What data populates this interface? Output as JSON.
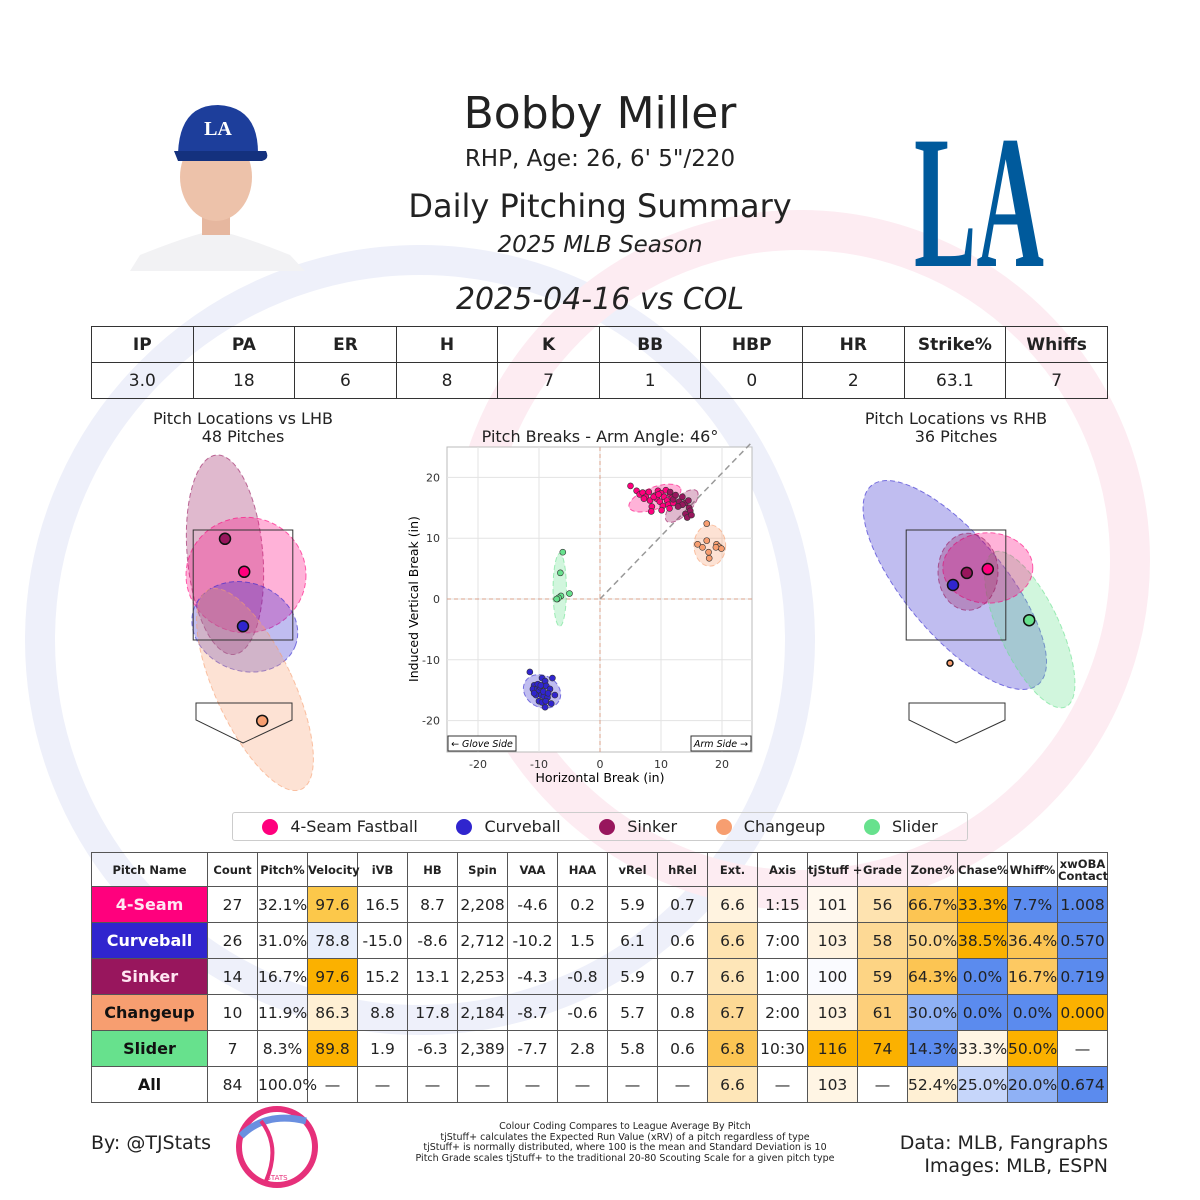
{
  "header": {
    "name": "Bobby Miller",
    "bio": "RHP, Age: 26, 6' 5\"/220",
    "title": "Daily Pitching Summary",
    "season": "2025 MLB Season",
    "game": "2025-04-16 vs COL",
    "team_logo": "LA",
    "team_color": "#005a9c"
  },
  "stats": {
    "headers": [
      "IP",
      "PA",
      "ER",
      "H",
      "K",
      "BB",
      "HBP",
      "HR",
      "Strike%",
      "Whiffs"
    ],
    "values": [
      "3.0",
      "18",
      "6",
      "8",
      "7",
      "1",
      "0",
      "2",
      "63.1",
      "7"
    ]
  },
  "pitch_colors": {
    "4-Seam Fastball": "#ff007d",
    "Curveball": "#3025ce",
    "Sinker": "#98165d",
    "Changeup": "#f79e70",
    "Slider": "#67e18d"
  },
  "legend": [
    "4-Seam Fastball",
    "Curveball",
    "Sinker",
    "Changeup",
    "Slider"
  ],
  "chart_data": [
    {
      "type": "scatter",
      "title": "Pitch Locations vs LHB",
      "subtitle": "48 Pitches",
      "zone": {
        "x": [
          -0.83,
          0.83
        ],
        "z": [
          1.5,
          3.5
        ]
      },
      "series": [
        {
          "name": "Sinker",
          "mean": [
            -0.3,
            3.34
          ],
          "ellipse": {
            "center": [
              -0.3,
              3.05
            ],
            "rx": 0.63,
            "rz": 1.82,
            "angle": -5
          }
        },
        {
          "name": "4-Seam Fastball",
          "mean": [
            0.02,
            2.74
          ],
          "ellipse": {
            "center": [
              0.05,
              2.68
            ],
            "rx": 1.0,
            "rz": 1.05,
            "angle": 0
          }
        },
        {
          "name": "Curveball",
          "mean": [
            0.0,
            1.75
          ],
          "ellipse": {
            "center": [
              0.03,
              1.74
            ],
            "rx": 0.9,
            "rz": 0.8,
            "angle": 20
          }
        },
        {
          "name": "Changeup",
          "mean": [
            0.32,
            0.03
          ],
          "ellipse": {
            "center": [
              0.2,
              0.6
            ],
            "rx": 0.65,
            "rz": 2.0,
            "angle": -25
          }
        }
      ]
    },
    {
      "type": "scatter",
      "title": "Pitch Breaks - Arm Angle: 46°",
      "xlabel": "Horizontal Break (in)",
      "ylabel": "Induced Vertical Break (in)",
      "xlim": [
        -25,
        25
      ],
      "ylim": [
        -25,
        25
      ],
      "xticks": [
        -20,
        -10,
        0,
        10,
        20
      ],
      "yticks": [
        -20,
        -10,
        0,
        10,
        20
      ],
      "grid": true,
      "arm_angle": 46,
      "annotations": [
        "← Glove Side",
        "Arm Side →"
      ],
      "series": [
        {
          "name": "4-Seam Fastball",
          "ellipse": {
            "center": [
              9,
              16.6
            ],
            "rx": 4.5,
            "ry": 1.8,
            "angle": -20
          },
          "points": [
            [
              5,
              18.6
            ],
            [
              6,
              17.8
            ],
            [
              6.5,
              17.2
            ],
            [
              7,
              17.5
            ],
            [
              7.5,
              16.8
            ],
            [
              8,
              17.6
            ],
            [
              8.2,
              16.2
            ],
            [
              8.5,
              15.2
            ],
            [
              9,
              17
            ],
            [
              9.3,
              16.5
            ],
            [
              9.5,
              17.8
            ],
            [
              9.8,
              16
            ],
            [
              10,
              17.4
            ],
            [
              10.3,
              15.3
            ],
            [
              10.5,
              16.8
            ],
            [
              10.8,
              17.9
            ],
            [
              11,
              16.2
            ],
            [
              11.2,
              15.5
            ],
            [
              11.5,
              17.2
            ],
            [
              11.8,
              16.6
            ],
            [
              12,
              15.8
            ],
            [
              8.8,
              16.8
            ],
            [
              7.2,
              16.5
            ],
            [
              10.1,
              14.6
            ],
            [
              8.4,
              14.4
            ],
            [
              11.4,
              14.9
            ],
            [
              9.6,
              17.2
            ]
          ]
        },
        {
          "name": "Sinker",
          "ellipse": {
            "center": [
              13.4,
              15.3
            ],
            "rx": 3.5,
            "ry": 1.5,
            "angle": -45
          },
          "points": [
            [
              11.5,
              17.6
            ],
            [
              12,
              16.4
            ],
            [
              12.4,
              17.1
            ],
            [
              13,
              16
            ],
            [
              13.5,
              16.8
            ],
            [
              14,
              15.8
            ],
            [
              14.5,
              16.2
            ],
            [
              14.6,
              15
            ],
            [
              14.8,
              14.5
            ],
            [
              14,
              14
            ],
            [
              14.3,
              13.4
            ],
            [
              15,
              13.8
            ],
            [
              13.5,
              15.5
            ],
            [
              12.8,
              15.2
            ]
          ]
        },
        {
          "name": "Curveball",
          "ellipse": {
            "center": [
              -9.5,
              -15.2
            ],
            "rx": 3.2,
            "ry": 2.6,
            "angle": 30
          },
          "points": [
            [
              -11.5,
              -12
            ],
            [
              -9.5,
              -13
            ],
            [
              -10.8,
              -14.2
            ],
            [
              -11,
              -14.8
            ],
            [
              -10.3,
              -14.8
            ],
            [
              -10,
              -15
            ],
            [
              -9.8,
              -14.5
            ],
            [
              -9,
              -13.5
            ],
            [
              -8.8,
              -14.3
            ],
            [
              -8.2,
              -14.8
            ],
            [
              -10.5,
              -15.8
            ],
            [
              -9.6,
              -15.8
            ],
            [
              -9.2,
              -16
            ],
            [
              -8.6,
              -16.2
            ],
            [
              -7.4,
              -15.8
            ],
            [
              -10.8,
              -15.5
            ],
            [
              -9.3,
              -15.2
            ],
            [
              -10,
              -16.8
            ],
            [
              -8,
              -17.2
            ],
            [
              -9,
              -17.8
            ],
            [
              -9.5,
              -17
            ],
            [
              -7.8,
              -13
            ],
            [
              -10.2,
              -14
            ],
            [
              -8.5,
              -15.5
            ],
            [
              -9.7,
              -14.2
            ],
            [
              -8.9,
              -16.8
            ]
          ]
        },
        {
          "name": "Changeup",
          "ellipse": {
            "center": [
              18,
              8.8
            ],
            "rx": 2.6,
            "ry": 3.4,
            "angle": 0
          },
          "points": [
            [
              17.5,
              12.4
            ],
            [
              17.5,
              9.6
            ],
            [
              16,
              9
            ],
            [
              16.8,
              8.5
            ],
            [
              17.8,
              7.7
            ],
            [
              17.9,
              6.7
            ],
            [
              19.1,
              9
            ],
            [
              19.5,
              8.6
            ],
            [
              19.9,
              8.3
            ],
            [
              19,
              8.5
            ]
          ]
        },
        {
          "name": "Slider",
          "ellipse": {
            "center": [
              -6.6,
              1.5
            ],
            "rx": 1.1,
            "ry": 6,
            "angle": 0
          },
          "points": [
            [
              -6.1,
              7.7
            ],
            [
              -6.5,
              4.3
            ],
            [
              -7,
              0
            ],
            [
              -6.4,
              0.5
            ],
            [
              -5,
              0.9
            ],
            [
              -6.8,
              0.2
            ],
            [
              -7.1,
              0
            ]
          ]
        }
      ]
    },
    {
      "type": "scatter",
      "title": "Pitch Locations vs RHB",
      "subtitle": "36 Pitches",
      "zone": {
        "x": [
          -0.83,
          0.83
        ],
        "z": [
          1.5,
          3.5
        ]
      },
      "series": [
        {
          "name": "Curveball",
          "mean": [
            -0.05,
            2.5
          ],
          "ellipse": {
            "center": [
              -0.02,
              2.5
            ],
            "rx": 0.83,
            "rz": 2.36,
            "angle": -40
          }
        },
        {
          "name": "Slider",
          "mean": [
            1.22,
            1.86
          ],
          "ellipse": {
            "center": [
              1.23,
              1.69
            ],
            "rx": 0.5,
            "rz": 1.55,
            "angle": -25
          }
        },
        {
          "name": "4-Seam Fastball",
          "mean": [
            0.53,
            2.79
          ],
          "ellipse": {
            "center": [
              0.53,
              2.81
            ],
            "rx": 0.75,
            "rz": 0.64,
            "angle": 0
          }
        },
        {
          "name": "Sinker",
          "mean": [
            0.18,
            2.72
          ],
          "ellipse": {
            "center": [
              0.2,
              2.74
            ],
            "rx": 0.5,
            "rz": 0.7,
            "angle": 0
          }
        },
        {
          "name": "Changeup",
          "mean": [
            -0.1,
            1.08
          ]
        }
      ]
    }
  ],
  "pitch_table": {
    "headers": [
      "Pitch Name",
      "Count",
      "Pitch%",
      "Velocity",
      "iVB",
      "HB",
      "Spin",
      "VAA",
      "HAA",
      "vRel",
      "hRel",
      "Ext.",
      "Axis",
      "tjStuff +",
      "Grade",
      "Zone%",
      "Chase%",
      "Whiff%",
      "xwOBA Contact"
    ],
    "rows": [
      {
        "name": "4-Seam",
        "bg": "#ff007d",
        "fg": "#ffe6f2",
        "cells": [
          "27",
          "32.1%",
          "97.6",
          "16.5",
          "8.7",
          "2,208",
          "-4.6",
          "0.2",
          "5.9",
          "0.7",
          "6.6",
          "1:15",
          "101",
          "56",
          "66.7%",
          "33.3%",
          "7.7%",
          "1.008"
        ],
        "colors": {
          "3": "#fcc84a",
          "11": "#fff3e0",
          "13": "#fff8ee",
          "14": "#fee3b0",
          "15": "#fcc553",
          "16": "#fbb100",
          "17": "#5b8bee",
          "18": "#5b8bee"
        }
      },
      {
        "name": "Curveball",
        "bg": "#3025ce",
        "fg": "#ffffff",
        "cells": [
          "26",
          "31.0%",
          "78.8",
          "-15.0",
          "-8.6",
          "2,712",
          "-10.2",
          "1.5",
          "6.1",
          "0.6",
          "6.6",
          "7:00",
          "103",
          "58",
          "50.0%",
          "38.5%",
          "36.4%",
          "0.570"
        ],
        "colors": {
          "3": "#e8eefb",
          "11": "#fee3b0",
          "13": "#fff3e0",
          "14": "#fdd995",
          "15": "#fcd78c",
          "16": "#fbb100",
          "17": "#fcc553",
          "18": "#5b8bee"
        }
      },
      {
        "name": "Sinker",
        "bg": "#98165d",
        "fg": "#ffe6f2",
        "cells": [
          "14",
          "16.7%",
          "97.6",
          "15.2",
          "13.1",
          "2,253",
          "-4.3",
          "-0.8",
          "5.9",
          "0.7",
          "6.6",
          "1:00",
          "100",
          "59",
          "64.3%",
          "0.0%",
          "16.7%",
          "0.719"
        ],
        "colors": {
          "3": "#fbb100",
          "11": "#fee6b8",
          "13": "#fafbff",
          "14": "#fdd484",
          "15": "#fcc553",
          "16": "#5b8bee",
          "17": "#fdc962",
          "18": "#5b8bee"
        }
      },
      {
        "name": "Changeup",
        "bg": "#f79e70",
        "fg": "#111111",
        "cells": [
          "10",
          "11.9%",
          "86.3",
          "8.8",
          "17.8",
          "2,184",
          "-8.7",
          "-0.6",
          "5.7",
          "0.8",
          "6.7",
          "2:00",
          "103",
          "61",
          "30.0%",
          "0.0%",
          "0.0%",
          "0.000"
        ],
        "colors": {
          "3": "#fff0d4",
          "11": "#fdd995",
          "13": "#fff3e0",
          "14": "#fdcf7a",
          "15": "#8fb1f5",
          "16": "#5b8bee",
          "17": "#5b8bee",
          "18": "#fbb100"
        }
      },
      {
        "name": "Slider",
        "bg": "#67e18d",
        "fg": "#111111",
        "cells": [
          "7",
          "8.3%",
          "89.8",
          "1.9",
          "-6.3",
          "2,389",
          "-7.7",
          "2.8",
          "5.8",
          "0.6",
          "6.8",
          "10:30",
          "116",
          "74",
          "14.3%",
          "33.3%",
          "50.0%",
          "—"
        ],
        "colors": {
          "3": "#fbb100",
          "11": "#fcc553",
          "13": "#fbb100",
          "14": "#fbb100",
          "15": "#5b8bee",
          "16": "#fff5e4",
          "17": "#fbb100"
        }
      },
      {
        "name": "All",
        "bg": "#ffffff",
        "fg": "#111111",
        "cells": [
          "84",
          "100.0%",
          "—",
          "—",
          "—",
          "—",
          "—",
          "—",
          "—",
          "—",
          "6.6",
          "—",
          "103",
          "—",
          "52.4%",
          "25.0%",
          "20.0%",
          "0.674"
        ],
        "colors": {
          "11": "#fee6b8",
          "13": "#fff5e4",
          "15": "#fff0d4",
          "16": "#c6d6fa",
          "17": "#8fb1f5",
          "18": "#5b8bee"
        }
      }
    ]
  },
  "footer": {
    "by": "By: @TJStats",
    "logo_text": "STATS",
    "notes": [
      "Colour Coding Compares to League Average By Pitch",
      "tjStuff+ calculates the Expected Run Value (xRV) of a pitch regardless of type",
      "tjStuff+ is normally distributed, where 100 is the mean and Standard Deviation is 10",
      "Pitch Grade scales tjStuff+ to the traditional 20-80 Scouting Scale for a given pitch type"
    ],
    "data": "Data: MLB, Fangraphs",
    "images": "Images: MLB, ESPN"
  }
}
